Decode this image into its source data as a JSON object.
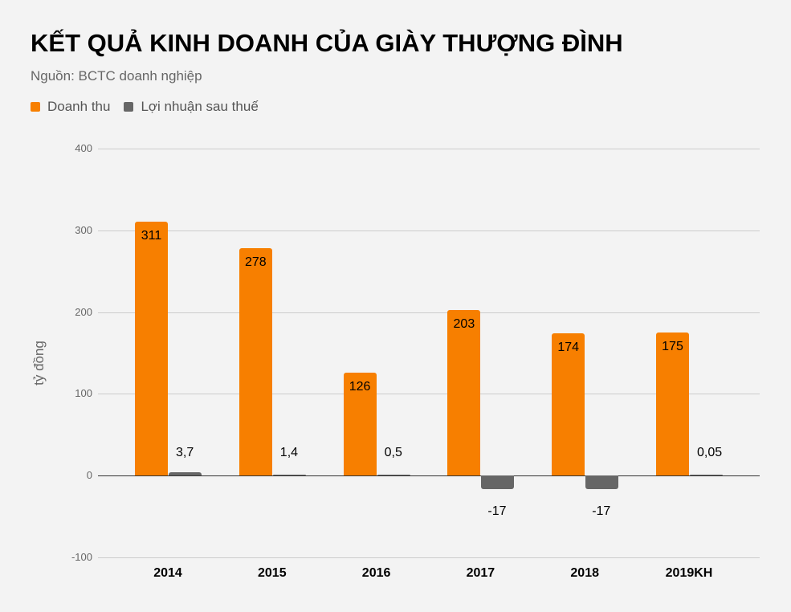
{
  "header": {
    "title": "KẾT QUẢ KINH DOANH CỦA GIÀY THƯỢNG ĐÌNH",
    "subtitle": "Nguồn: BCTC doanh nghiệp"
  },
  "legend": [
    {
      "label": "Doanh thu",
      "color": "#f77f00"
    },
    {
      "label": "Lợi nhuận sau thuế",
      "color": "#666666"
    }
  ],
  "axis": {
    "ylabel": "tỷ đồng",
    "yticks": [
      "400",
      "300",
      "200",
      "100",
      "0",
      "-100"
    ]
  },
  "groups": [
    {
      "x": "2014",
      "revenue": "311",
      "profit": "3,7"
    },
    {
      "x": "2015",
      "revenue": "278",
      "profit": "1,4"
    },
    {
      "x": "2016",
      "revenue": "126",
      "profit": "0,5"
    },
    {
      "x": "2017",
      "revenue": "203",
      "profit": "-17"
    },
    {
      "x": "2018",
      "revenue": "174",
      "profit": "-17"
    },
    {
      "x": "2019KH",
      "revenue": "175",
      "profit": "0,05"
    }
  ],
  "chart_data": {
    "type": "bar",
    "title": "KẾT QUẢ KINH DOANH CỦA GIÀY THƯỢNG ĐÌNH",
    "subtitle": "Nguồn: BCTC doanh nghiệp",
    "categories": [
      "2014",
      "2015",
      "2016",
      "2017",
      "2018",
      "2019KH"
    ],
    "series": [
      {
        "name": "Doanh thu",
        "color": "#f77f00",
        "values": [
          311,
          278,
          126,
          203,
          174,
          175
        ]
      },
      {
        "name": "Lợi nhuận sau thuế",
        "color": "#666666",
        "values": [
          3.7,
          1.4,
          0.5,
          -17,
          -17,
          0.05
        ]
      }
    ],
    "xlabel": "",
    "ylabel": "tỷ đồng",
    "ylim": [
      -100,
      400
    ],
    "yticks": [
      -100,
      0,
      100,
      200,
      300,
      400
    ],
    "grid": true,
    "legend_position": "top-left"
  }
}
